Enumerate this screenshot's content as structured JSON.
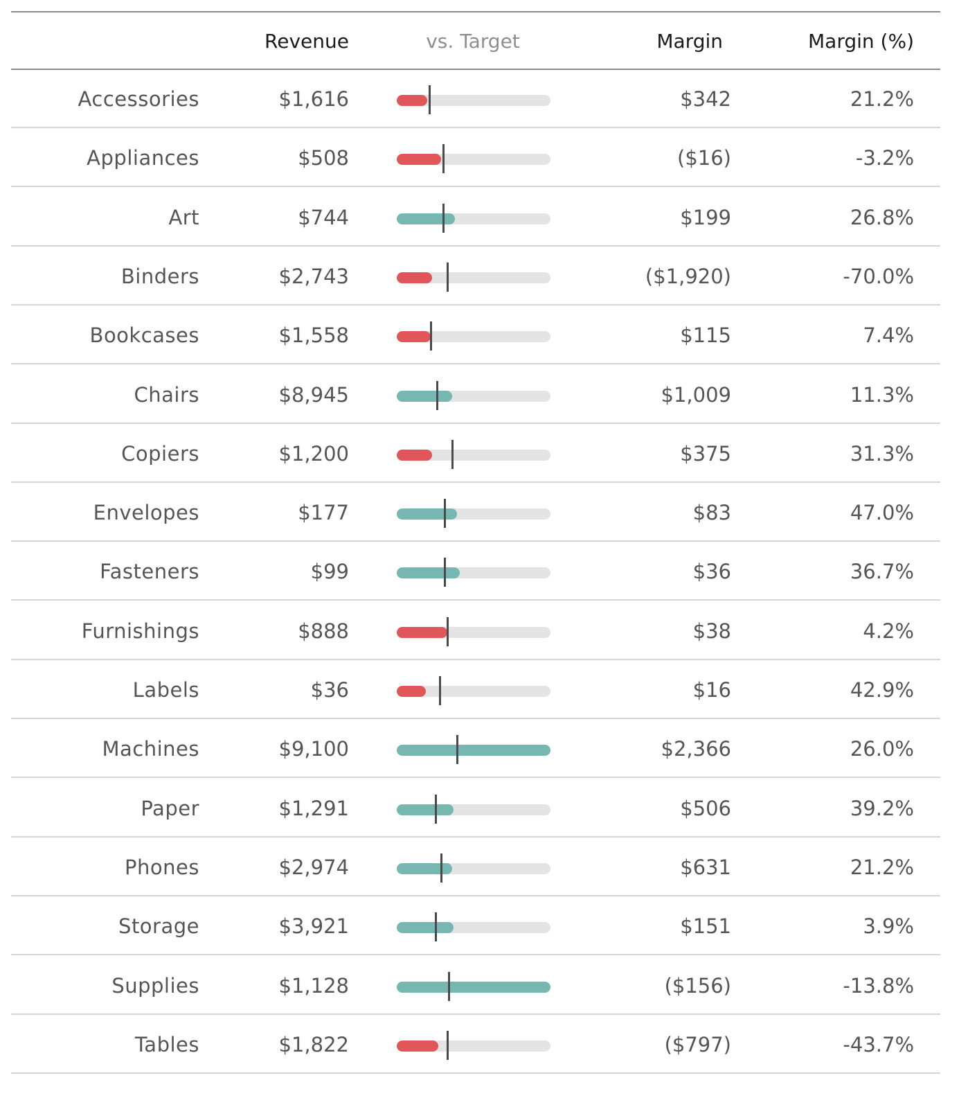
{
  "header": {
    "revenue": "Revenue",
    "vs_target": "vs. Target",
    "margin": "Margin",
    "margin_pct": "Margin (%)"
  },
  "colors": {
    "below_target": "#e15759",
    "above_target": "#76b7b2",
    "track": "#e4e4e4",
    "marker": "#4a4a4a"
  },
  "rows": [
    {
      "name": "Accessories",
      "revenue": "$1,616",
      "margin": "$342",
      "margin_pct": "21.2%",
      "progress": 0.2,
      "target": 0.21,
      "status": "below"
    },
    {
      "name": "Appliances",
      "revenue": "$508",
      "margin": "($16)",
      "margin_pct": "-3.2%",
      "progress": 0.29,
      "target": 0.3,
      "status": "below"
    },
    {
      "name": "Art",
      "revenue": "$744",
      "margin": "$199",
      "margin_pct": "26.8%",
      "progress": 0.38,
      "target": 0.3,
      "status": "above"
    },
    {
      "name": "Binders",
      "revenue": "$2,743",
      "margin": "($1,920)",
      "margin_pct": "-70.0%",
      "progress": 0.23,
      "target": 0.33,
      "status": "below"
    },
    {
      "name": "Bookcases",
      "revenue": "$1,558",
      "margin": "$115",
      "margin_pct": "7.4%",
      "progress": 0.22,
      "target": 0.22,
      "status": "below"
    },
    {
      "name": "Chairs",
      "revenue": "$8,945",
      "margin": "$1,009",
      "margin_pct": "11.3%",
      "progress": 0.36,
      "target": 0.26,
      "status": "above"
    },
    {
      "name": "Copiers",
      "revenue": "$1,200",
      "margin": "$375",
      "margin_pct": "31.3%",
      "progress": 0.23,
      "target": 0.36,
      "status": "below"
    },
    {
      "name": "Envelopes",
      "revenue": "$177",
      "margin": "$83",
      "margin_pct": "47.0%",
      "progress": 0.39,
      "target": 0.31,
      "status": "above"
    },
    {
      "name": "Fasteners",
      "revenue": "$99",
      "margin": "$36",
      "margin_pct": "36.7%",
      "progress": 0.41,
      "target": 0.31,
      "status": "above"
    },
    {
      "name": "Furnishings",
      "revenue": "$888",
      "margin": "$38",
      "margin_pct": "4.2%",
      "progress": 0.33,
      "target": 0.33,
      "status": "below"
    },
    {
      "name": "Labels",
      "revenue": "$36",
      "margin": "$16",
      "margin_pct": "42.9%",
      "progress": 0.19,
      "target": 0.28,
      "status": "below"
    },
    {
      "name": "Machines",
      "revenue": "$9,100",
      "margin": "$2,366",
      "margin_pct": "26.0%",
      "progress": 1.0,
      "target": 0.39,
      "status": "above"
    },
    {
      "name": "Paper",
      "revenue": "$1,291",
      "margin": "$506",
      "margin_pct": "39.2%",
      "progress": 0.37,
      "target": 0.25,
      "status": "above"
    },
    {
      "name": "Phones",
      "revenue": "$2,974",
      "margin": "$631",
      "margin_pct": "21.2%",
      "progress": 0.36,
      "target": 0.29,
      "status": "above"
    },
    {
      "name": "Storage",
      "revenue": "$3,921",
      "margin": "$151",
      "margin_pct": "3.9%",
      "progress": 0.37,
      "target": 0.25,
      "status": "above"
    },
    {
      "name": "Supplies",
      "revenue": "$1,128",
      "margin": "($156)",
      "margin_pct": "-13.8%",
      "progress": 1.0,
      "target": 0.34,
      "status": "above"
    },
    {
      "name": "Tables",
      "revenue": "$1,822",
      "margin": "($797)",
      "margin_pct": "-43.7%",
      "progress": 0.27,
      "target": 0.33,
      "status": "below"
    }
  ]
}
